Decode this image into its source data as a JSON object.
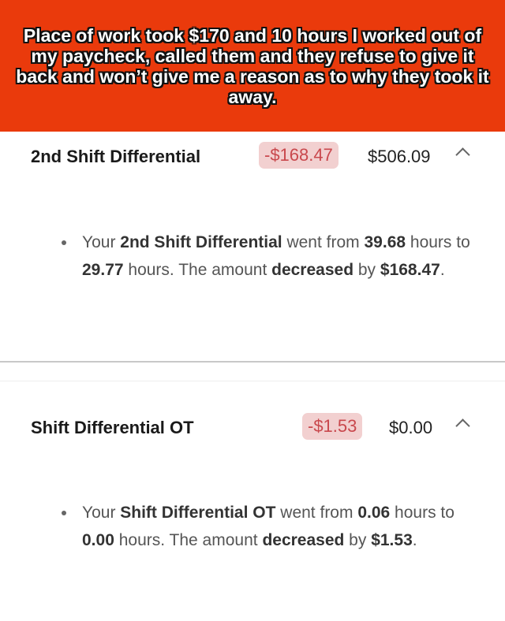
{
  "caption": "Place of work took $170 and 10 hours I worked out of my paycheck, called them and they refuse to give it back and won’t give me a reason as to why they took it away.",
  "colors": {
    "banner": "#ea3a0c",
    "badge_bg": "#f2d0d0",
    "badge_text": "#c9484d"
  },
  "items": [
    {
      "title": "2nd Shift Differential",
      "change": "-$168.47",
      "amount": "$506.09",
      "icon": "chevron-up-icon",
      "detail": {
        "p1": "Your ",
        "b1": "2nd Shift Differential",
        "p2": " went from ",
        "b2": "39.68",
        "p3": " hours to ",
        "b3": "29.77",
        "p4": " hours. The amount ",
        "b4": "decreased",
        "p5": " by ",
        "b5": "$168.47",
        "p6": "."
      }
    },
    {
      "title": "Shift Differential OT",
      "change": "-$1.53",
      "amount": "$0.00",
      "icon": "chevron-up-icon",
      "detail": {
        "p1": "Your ",
        "b1": "Shift Differential OT",
        "p2": " went from ",
        "b2": "0.06",
        "p3": " hours to ",
        "b3": "0.00",
        "p4": " hours. The amount ",
        "b4": "decreased",
        "p5": " by ",
        "b5": "$1.53",
        "p6": "."
      }
    }
  ]
}
